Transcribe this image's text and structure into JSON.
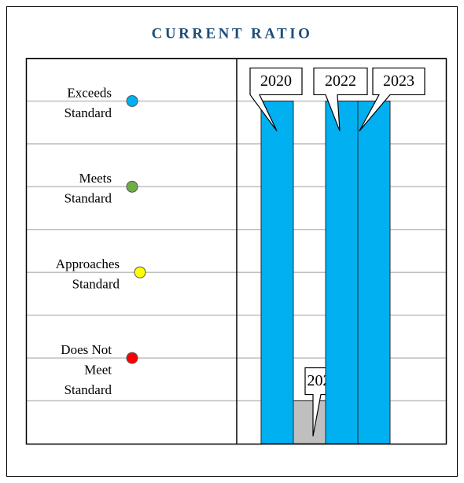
{
  "chart_data": {
    "type": "bar",
    "title": "CURRENT RATIO",
    "categories": [
      "2020",
      "2021",
      "2022",
      "2023"
    ],
    "values": [
      8,
      1,
      8,
      8
    ],
    "colors": [
      "#00b0f0",
      "#bfbfbf",
      "#00b0f0",
      "#00b0f0"
    ],
    "ylim": [
      0,
      9
    ],
    "yticks": [
      1,
      2,
      3,
      4,
      5,
      6,
      7,
      8
    ],
    "grid": true,
    "levels": [
      {
        "lines": [
          "Exceeds",
          "Standard"
        ],
        "value": 8,
        "color": "#00b0f0"
      },
      {
        "lines": [
          "Meets",
          "Standard"
        ],
        "value": 6,
        "color": "#70ad47"
      },
      {
        "lines": [
          "Approaches",
          "Standard"
        ],
        "value": 4,
        "color": "#ffff00"
      },
      {
        "lines": [
          "Does Not",
          "Meet",
          "Standard"
        ],
        "value": 2,
        "color": "#ff0000"
      }
    ]
  }
}
